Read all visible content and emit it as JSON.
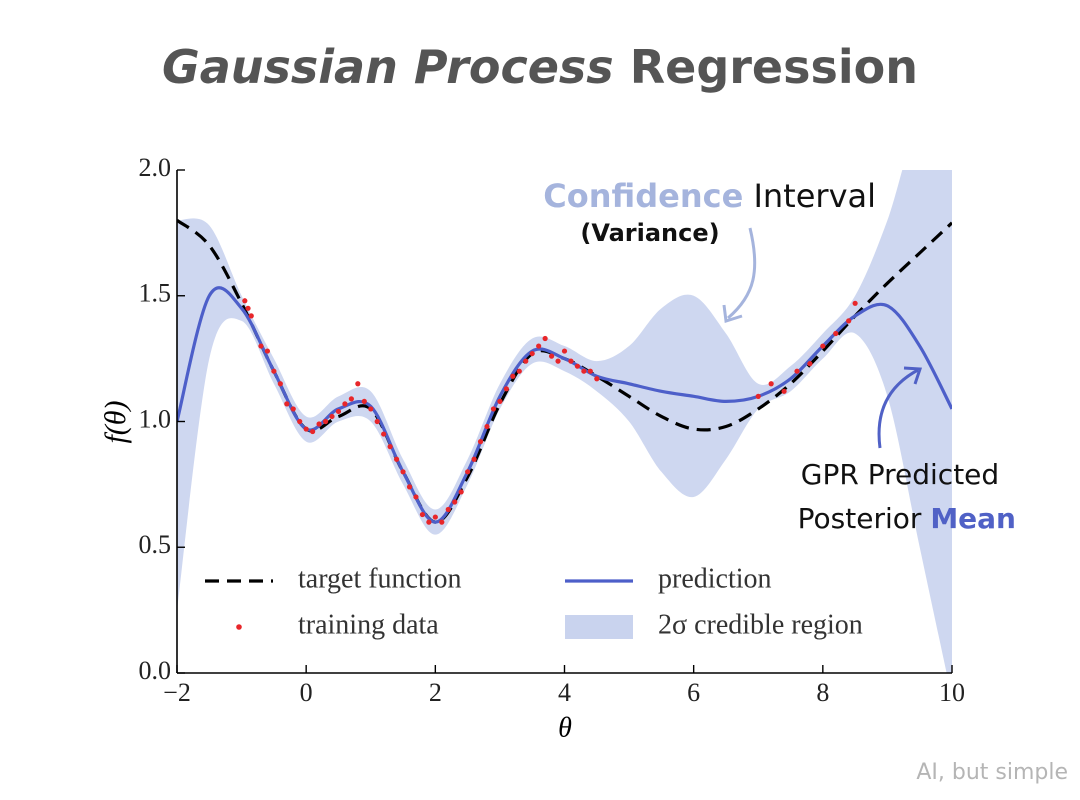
{
  "chart_data": {
    "type": "line",
    "title": [
      "Gaussian Process",
      "Regression"
    ],
    "x_label": "θ",
    "y_label": "f(θ)",
    "xlim": [
      -2,
      10
    ],
    "ylim": [
      0,
      2
    ],
    "xticks": [
      {
        "value": -2,
        "label": "−2"
      },
      0,
      2,
      4,
      6,
      8,
      10
    ],
    "yticks": [
      {
        "value": 0,
        "label": "0.0"
      },
      0.5,
      {
        "value": 1,
        "label": "1.0"
      },
      1.5,
      {
        "value": 2,
        "label": "2.0"
      }
    ],
    "x": [
      -2,
      -1.5,
      -1,
      -0.5,
      0,
      0.5,
      1,
      1.5,
      2,
      2.5,
      3,
      3.5,
      4,
      4.5,
      5,
      5.5,
      6,
      6.5,
      7,
      7.5,
      8,
      8.5,
      9,
      9.5,
      10
    ],
    "series": [
      {
        "name": "target function",
        "style": "dashed",
        "color": "#000000",
        "values": [
          1.8,
          1.7,
          1.47,
          1.2,
          0.97,
          1.02,
          1.05,
          0.8,
          0.6,
          0.78,
          1.07,
          1.27,
          1.25,
          1.18,
          1.1,
          1.02,
          0.97,
          0.98,
          1.05,
          1.15,
          1.28,
          1.42,
          1.55,
          1.67,
          1.79
        ]
      },
      {
        "name": "prediction",
        "style": "solid",
        "color": "#4d5fc9",
        "values": [
          1.0,
          1.5,
          1.45,
          1.2,
          0.97,
          1.05,
          1.06,
          0.8,
          0.6,
          0.8,
          1.1,
          1.28,
          1.25,
          1.18,
          1.15,
          1.12,
          1.1,
          1.08,
          1.1,
          1.17,
          1.3,
          1.42,
          1.46,
          1.3,
          1.05
        ]
      },
      {
        "name": "training data",
        "style": "points",
        "color": "#e8262a",
        "x": [
          -0.95,
          -0.9,
          -0.85,
          -0.7,
          -0.6,
          -0.5,
          -0.4,
          -0.3,
          -0.2,
          -0.1,
          0,
          0.1,
          0.2,
          0.3,
          0.4,
          0.5,
          0.6,
          0.7,
          0.8,
          0.9,
          1.0,
          1.1,
          1.2,
          1.3,
          1.4,
          1.5,
          1.6,
          1.7,
          1.8,
          1.9,
          2.0,
          2.1,
          2.2,
          2.3,
          2.4,
          2.5,
          2.6,
          2.7,
          2.8,
          2.9,
          3.0,
          3.1,
          3.2,
          3.3,
          3.4,
          3.5,
          3.6,
          3.7,
          3.8,
          3.9,
          4.0,
          4.1,
          4.2,
          4.3,
          4.4,
          4.5,
          7.0,
          7.2,
          7.4,
          7.6,
          7.8,
          8.0,
          8.2,
          8.4,
          8.5
        ],
        "values": [
          1.48,
          1.45,
          1.42,
          1.3,
          1.28,
          1.2,
          1.15,
          1.07,
          1.05,
          1.0,
          0.97,
          0.96,
          0.99,
          1.0,
          1.02,
          1.04,
          1.07,
          1.09,
          1.15,
          1.08,
          1.05,
          1.0,
          0.95,
          0.9,
          0.85,
          0.8,
          0.74,
          0.7,
          0.63,
          0.6,
          0.62,
          0.6,
          0.65,
          0.68,
          0.72,
          0.8,
          0.85,
          0.92,
          0.98,
          1.05,
          1.08,
          1.13,
          1.18,
          1.2,
          1.24,
          1.27,
          1.3,
          1.33,
          1.26,
          1.24,
          1.28,
          1.24,
          1.22,
          1.2,
          1.2,
          1.17,
          1.1,
          1.15,
          1.12,
          1.2,
          1.23,
          1.3,
          1.35,
          1.4,
          1.47
        ]
      },
      {
        "name": "2σ credible region",
        "style": "band",
        "color": "#c9d3ee",
        "lower": [
          0.25,
          1.25,
          1.4,
          1.15,
          0.92,
          1.0,
          1.0,
          0.75,
          0.55,
          0.75,
          1.05,
          1.23,
          1.2,
          1.12,
          1.0,
          0.8,
          0.7,
          0.85,
          1.05,
          1.12,
          1.25,
          1.35,
          1.1,
          0.5,
          -0.1
        ],
        "upper": [
          1.8,
          1.78,
          1.5,
          1.25,
          1.02,
          1.1,
          1.12,
          0.85,
          0.65,
          0.85,
          1.15,
          1.33,
          1.3,
          1.24,
          1.3,
          1.45,
          1.5,
          1.35,
          1.15,
          1.22,
          1.35,
          1.5,
          1.8,
          2.2,
          2.2
        ]
      }
    ],
    "annotations": {
      "confidence": [
        "Confidence",
        "Interval",
        "(Variance)"
      ],
      "mean": [
        "GPR Predicted",
        "Posterior",
        "Mean"
      ]
    },
    "watermark": "AI, but simple"
  }
}
